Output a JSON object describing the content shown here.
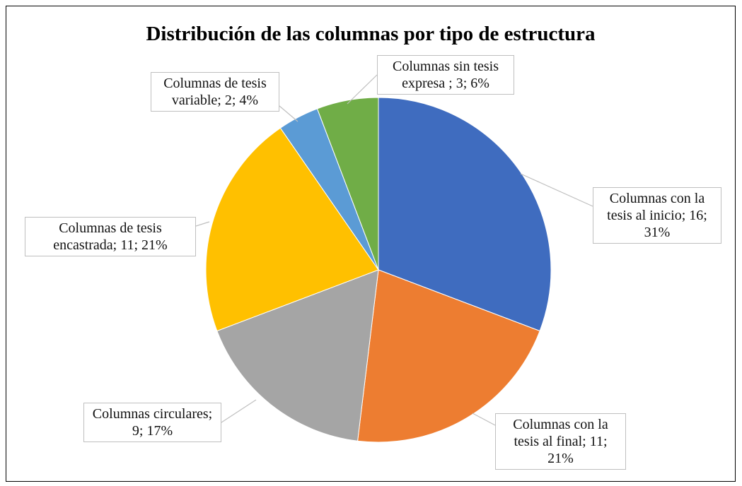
{
  "chart_data": {
    "type": "pie",
    "title": "Distribución de las columnas por tipo de estructura",
    "values": [
      16,
      11,
      9,
      11,
      2,
      3
    ],
    "value_labels": [
      "Columnas con la tesis al inicio; 16; 31%",
      "Columnas con la tesis al final; 11; 21%",
      "Columnas circulares; 9; 17%",
      "Columnas de tesis encastrada; 11; 21%",
      "Columnas de tesis variable; 2; 4%",
      "Columnas sin tesis expresa ; 3; 6%"
    ],
    "colors": [
      "#3f6cbf",
      "#ed7d31",
      "#a5a5a5",
      "#ffc000",
      "#5b9bd5",
      "#70ad47"
    ]
  }
}
